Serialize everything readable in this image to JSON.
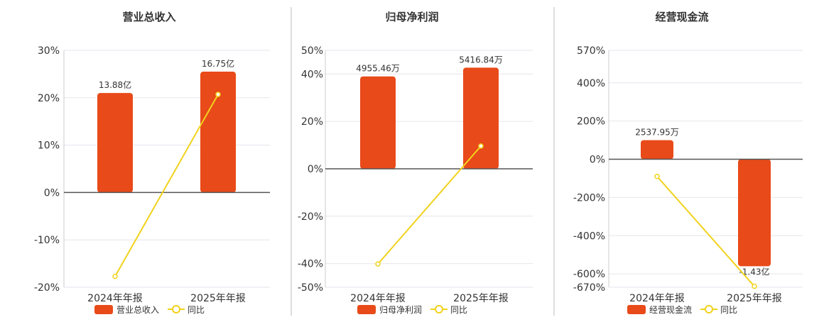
{
  "colors": {
    "bar": "#e84a19",
    "line": "#f1d21c",
    "axis": "#555555",
    "grid": "#e6e6ee",
    "divider": "#bbbbbb",
    "text": "#333333"
  },
  "chart_data": [
    {
      "type": "bar",
      "title": "营业总收入",
      "categories": [
        "2024年年报",
        "2025年年报"
      ],
      "ticks": [
        "30%",
        "20%",
        "10%",
        "0%",
        "-10%",
        "-20%"
      ],
      "tick_values": [
        30,
        20,
        10,
        0,
        -10,
        -20
      ],
      "ylim": [
        -20,
        30
      ],
      "bar_values": [
        21,
        25.5
      ],
      "bar_labels": [
        "13.88亿",
        "16.75亿"
      ],
      "line_values": [
        -17.7,
        20.7
      ],
      "legend": {
        "bar": "营业总收入",
        "line": "同比"
      }
    },
    {
      "type": "bar",
      "title": "归母净利润",
      "categories": [
        "2024年年报",
        "2025年年报"
      ],
      "ticks": [
        "50%",
        "40%",
        "20%",
        "0%",
        "-20%",
        "-40%",
        "-50%"
      ],
      "tick_values": [
        50,
        40,
        20,
        0,
        -20,
        -40,
        -50
      ],
      "ylim": [
        -50,
        50
      ],
      "bar_values": [
        39,
        42.7
      ],
      "bar_labels": [
        "4955.46万",
        "5416.84万"
      ],
      "line_values": [
        -40.2,
        9.6
      ],
      "legend": {
        "bar": "归母净利润",
        "line": "同比"
      }
    },
    {
      "type": "bar",
      "title": "经营现金流",
      "categories": [
        "2024年年报",
        "2025年年报"
      ],
      "ticks": [
        "570%",
        "400%",
        "200%",
        "0%",
        "-200%",
        "-400%",
        "-600%",
        "-670%"
      ],
      "tick_values": [
        570,
        400,
        200,
        0,
        -200,
        -400,
        -600,
        -670
      ],
      "ylim": [
        -670,
        570
      ],
      "bar_values": [
        100,
        -560
      ],
      "bar_labels": [
        "2537.95万",
        "-1.43亿"
      ],
      "line_values": [
        -90,
        -665
      ],
      "legend": {
        "bar": "经营现金流",
        "line": "同比"
      }
    }
  ]
}
